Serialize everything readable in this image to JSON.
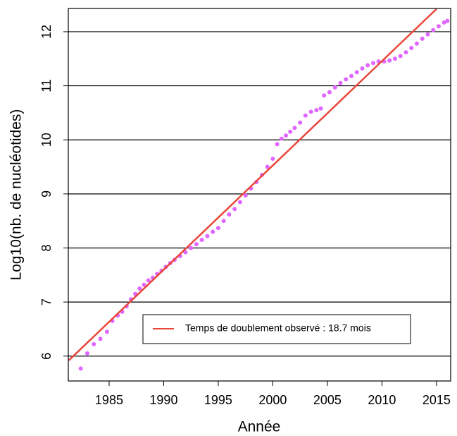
{
  "chart_data": {
    "type": "scatter",
    "xlabel": "Année",
    "ylabel": "Log10(nb. de nucléotides)",
    "xlim": [
      1981.26,
      2016.3
    ],
    "ylim": [
      5.54,
      12.43
    ],
    "xticks": [
      1985,
      1990,
      1995,
      2000,
      2005,
      2010,
      2015
    ],
    "yticks": [
      6,
      7,
      8,
      9,
      10,
      11,
      12
    ],
    "grid": true,
    "legend": "bottom-right",
    "series": [
      {
        "type": "scatter",
        "color": "#e066ff",
        "x": [
          1982.4,
          1983.0,
          1983.6,
          1984.2,
          1984.8,
          1985.3,
          1985.8,
          1986.2,
          1986.6,
          1987.0,
          1987.4,
          1987.8,
          1988.2,
          1988.6,
          1989.0,
          1989.4,
          1989.8,
          1990.2,
          1990.6,
          1991.0,
          1991.5,
          1992.0,
          1992.5,
          1993.0,
          1993.5,
          1994.0,
          1994.5,
          1995.0,
          1995.5,
          1996.0,
          1996.5,
          1997.0,
          1997.5,
          1998.0,
          1998.5,
          1999.0,
          1999.5,
          2000.0,
          2000.4,
          2000.8,
          2001.2,
          2001.6,
          2002.0,
          2002.5,
          2003.0,
          2003.5,
          2004.0,
          2004.4,
          2004.7,
          2005.2,
          2005.7,
          2006.2,
          2006.7,
          2007.2,
          2007.7,
          2008.2,
          2008.7,
          2009.2,
          2009.7,
          2010.2,
          2010.7,
          2011.2,
          2011.7,
          2012.2,
          2012.7,
          2013.2,
          2013.7,
          2014.2,
          2014.7,
          2015.2,
          2015.7,
          2016.0
        ],
        "values": [
          5.77,
          6.05,
          6.22,
          6.32,
          6.45,
          6.65,
          6.75,
          6.82,
          6.92,
          7.05,
          7.15,
          7.25,
          7.32,
          7.4,
          7.45,
          7.52,
          7.58,
          7.65,
          7.72,
          7.78,
          7.85,
          7.92,
          8.0,
          8.07,
          8.15,
          8.22,
          8.3,
          8.37,
          8.5,
          8.62,
          8.72,
          8.85,
          8.97,
          9.1,
          9.22,
          9.35,
          9.5,
          9.65,
          9.92,
          10.02,
          10.08,
          10.15,
          10.22,
          10.32,
          10.45,
          10.52,
          10.55,
          10.58,
          10.82,
          10.88,
          10.97,
          11.05,
          11.12,
          11.18,
          11.25,
          11.32,
          11.38,
          11.42,
          11.45,
          11.45,
          11.47,
          11.5,
          11.55,
          11.62,
          11.7,
          11.78,
          11.87,
          11.95,
          12.03,
          12.1,
          12.17,
          12.2
        ]
      },
      {
        "type": "line",
        "name": "Temps de doublement observé : 18.7 mois",
        "color": "#e8473a",
        "x": [
          1981.3,
          2015.0
        ],
        "values": [
          5.92,
          12.42
        ]
      }
    ]
  }
}
